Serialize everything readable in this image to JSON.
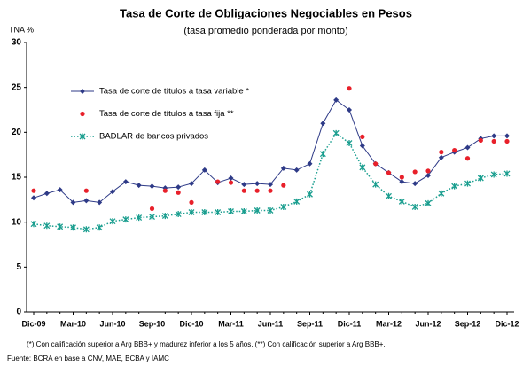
{
  "chart_data": {
    "type": "line",
    "title": "Tasa de Corte de Obligaciones Negociables en Pesos",
    "subtitle": "(tasa promedio ponderada por monto)",
    "y_label": "TNA %",
    "categories": [
      "Dic-09",
      null,
      null,
      "Mar-10",
      null,
      null,
      "Jun-10",
      null,
      null,
      "Sep-10",
      null,
      null,
      "Dic-10",
      null,
      null,
      "Mar-11",
      null,
      null,
      "Jun-11",
      null,
      null,
      "Sep-11",
      null,
      null,
      "Dic-11",
      null,
      null,
      "Mar-12",
      null,
      null,
      "Jun-12",
      null,
      null,
      "Sep-12",
      null,
      null,
      "Dic-12"
    ],
    "series": [
      {
        "name": "Tasa de corte de títulos a tasa variable *",
        "color": "#2e3a87",
        "marker": "diamond",
        "line": "solid",
        "values": [
          12.7,
          13.2,
          13.6,
          12.2,
          12.4,
          12.2,
          13.4,
          14.5,
          14.1,
          14.0,
          13.8,
          13.9,
          14.3,
          15.8,
          14.4,
          14.9,
          14.2,
          14.3,
          14.2,
          16.0,
          15.8,
          16.5,
          21.0,
          23.6,
          22.5,
          18.5,
          16.5,
          15.5,
          14.5,
          14.3,
          15.2,
          17.2,
          17.8,
          18.3,
          19.3,
          19.6,
          19.6
        ]
      },
      {
        "name": "Tasa de corte de títulos a tasa fija **",
        "color": "#e8202a",
        "marker": "circle",
        "line": "none",
        "values": [
          13.5,
          null,
          null,
          null,
          13.5,
          null,
          null,
          null,
          null,
          11.5,
          13.5,
          13.3,
          12.2,
          null,
          14.5,
          14.4,
          13.5,
          13.5,
          13.5,
          14.1,
          null,
          null,
          null,
          null,
          24.9,
          19.5,
          16.5,
          15.5,
          15.0,
          15.6,
          15.7,
          17.8,
          18.0,
          17.1,
          19.1,
          19.0,
          19.0
        ]
      },
      {
        "name": "BADLAR de bancos privados",
        "color": "#1a9e8f",
        "marker": "asterisk",
        "line": "dotted",
        "values": [
          9.8,
          9.6,
          9.5,
          9.4,
          9.2,
          9.4,
          10.1,
          10.3,
          10.5,
          10.6,
          10.7,
          10.9,
          11.1,
          11.1,
          11.1,
          11.2,
          11.2,
          11.3,
          11.3,
          11.7,
          12.3,
          13.1,
          17.6,
          19.9,
          18.8,
          16.1,
          14.2,
          12.9,
          12.3,
          11.7,
          12.1,
          13.2,
          14.0,
          14.3,
          14.9,
          15.3,
          15.4
        ]
      }
    ],
    "ylim": [
      0,
      30
    ],
    "yticks": [
      0,
      5,
      10,
      15,
      20,
      25,
      30
    ],
    "grid": false,
    "legend": "upper left",
    "footnotes": [
      "(*) Con calificación superior a Arg BBB+ y madurez inferior a los 5 años.   (**) Con calificación superior a Arg BBB+."
    ],
    "source": "Fuente: BCRA en base a CNV, MAE, BCBA y IAMC"
  }
}
